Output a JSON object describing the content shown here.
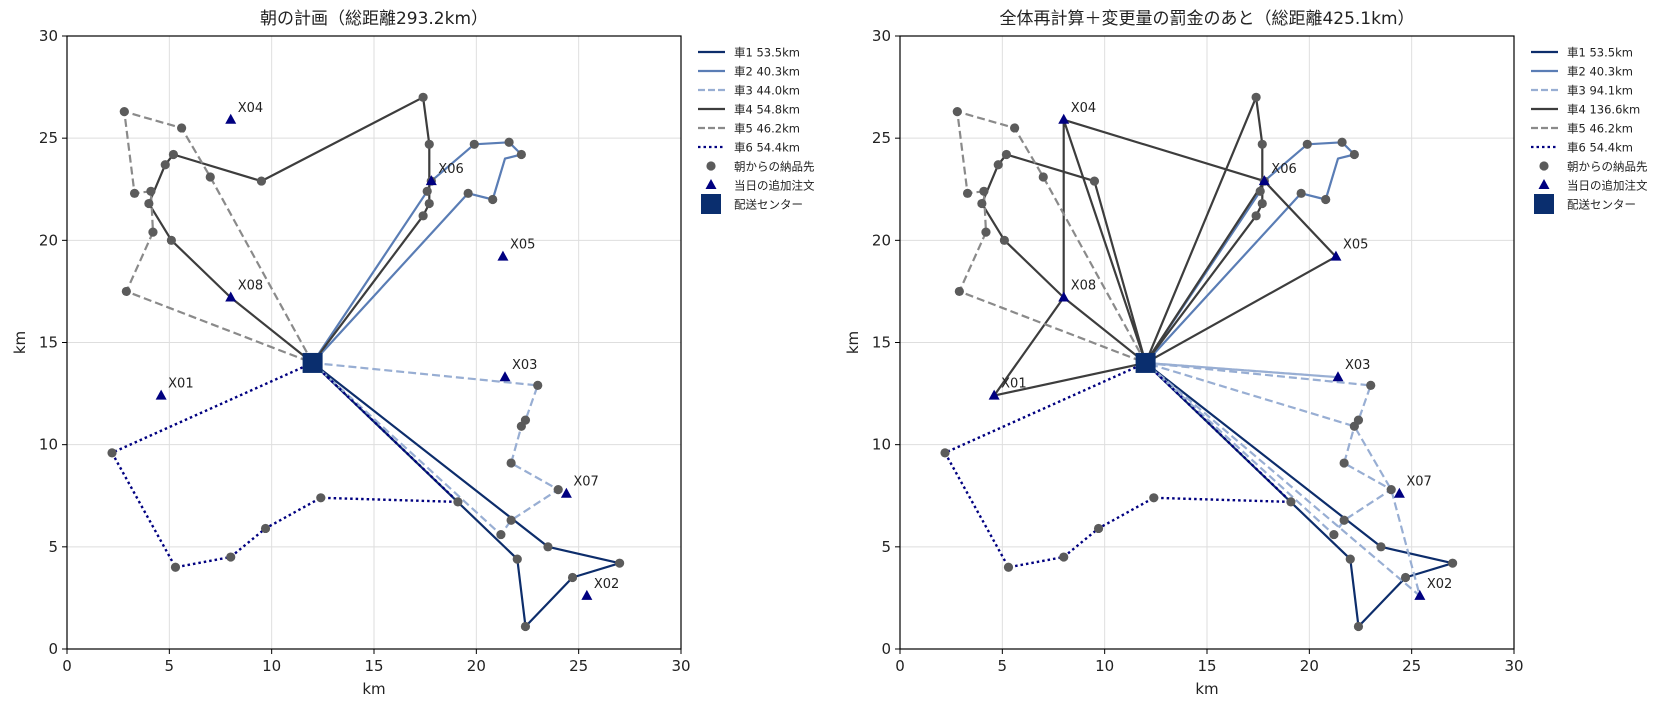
{
  "colors": {
    "route_1": "#0d2d6b",
    "route_2": "#5a7db5",
    "route_3": "#98aed3",
    "route_4": "#3d3d3d",
    "route_5": "#8a8a8a",
    "route_6": "#000080",
    "customer": "#5b5b5b",
    "extra_order": "#000080",
    "depot": "#0a2e6e",
    "grid": "#dedede"
  },
  "legend_items": [
    {
      "label": "車1 53.5km",
      "swatch": "route_1"
    },
    {
      "label": "車2 40.3km",
      "swatch": "route_2"
    },
    {
      "label": "車3 44.0km",
      "swatch": "route_3"
    },
    {
      "label": "車4 54.8km",
      "swatch": "route_4"
    },
    {
      "label": "車5 46.2km",
      "swatch": "route_5"
    },
    {
      "label": "車6 54.4km",
      "swatch": "route_6"
    },
    {
      "label": "朝からの納品先",
      "swatch": "customer"
    },
    {
      "label": "当日の追加注文",
      "swatch": "extra_order"
    },
    {
      "label": "配送センター",
      "swatch": "depot"
    }
  ],
  "chart_data": [
    {
      "type": "scatter",
      "title": "朝の計画（総距離293.2km）",
      "xlabel": "km",
      "ylabel": "km",
      "xlim": [
        0,
        30
      ],
      "ylim": [
        0,
        30
      ],
      "xticks": [
        0,
        5,
        10,
        15,
        20,
        25,
        30
      ],
      "yticks": [
        0,
        5,
        10,
        15,
        20,
        25,
        30
      ],
      "grid": true,
      "legend_position": "outside-right",
      "depot": {
        "name": "配送センター",
        "x": 12,
        "y": 14
      },
      "series": [
        {
          "name": "車1 53.5km",
          "style": "solid",
          "points": [
            [
              12,
              14
            ],
            [
              22.0,
              4.4
            ],
            [
              22.4,
              1.1
            ],
            [
              24.7,
              3.5
            ],
            [
              27.0,
              4.2
            ],
            [
              23.5,
              5.0
            ],
            [
              12,
              14
            ]
          ]
        },
        {
          "name": "車2 40.3km",
          "style": "solid",
          "points": [
            [
              12,
              14
            ],
            [
              17.6,
              22.4
            ],
            [
              17.8,
              22.9
            ],
            [
              19.9,
              24.7
            ],
            [
              21.6,
              24.8
            ],
            [
              22.2,
              24.2
            ],
            [
              21.4,
              24.0
            ],
            [
              20.8,
              22.0
            ],
            [
              19.6,
              22.3
            ],
            [
              12,
              14
            ]
          ]
        },
        {
          "name": "車3 44.0km",
          "style": "dashed",
          "points": [
            [
              12,
              14
            ],
            [
              23.0,
              12.9
            ],
            [
              22.4,
              11.2
            ],
            [
              22.2,
              10.9
            ],
            [
              21.7,
              9.1
            ],
            [
              24.0,
              7.8
            ],
            [
              21.7,
              6.3
            ],
            [
              21.2,
              5.6
            ],
            [
              12,
              14
            ]
          ]
        },
        {
          "name": "車4 54.8km",
          "style": "solid",
          "points": [
            [
              12,
              14
            ],
            [
              8.0,
              17.2
            ],
            [
              5.1,
              20.0
            ],
            [
              4.0,
              21.8
            ],
            [
              4.8,
              23.7
            ],
            [
              5.2,
              24.2
            ],
            [
              9.5,
              22.9
            ],
            [
              17.4,
              27.0
            ],
            [
              17.7,
              24.7
            ],
            [
              17.7,
              21.8
            ],
            [
              17.4,
              21.2
            ],
            [
              12,
              14
            ]
          ]
        },
        {
          "name": "車5 46.2km",
          "style": "dashed",
          "points": [
            [
              12,
              14
            ],
            [
              7.0,
              23.1
            ],
            [
              5.6,
              25.5
            ],
            [
              2.8,
              26.3
            ],
            [
              3.3,
              22.3
            ],
            [
              4.1,
              22.4
            ],
            [
              4.2,
              20.4
            ],
            [
              2.9,
              17.5
            ],
            [
              12,
              14
            ]
          ]
        },
        {
          "name": "車6 54.4km",
          "style": "dotted",
          "points": [
            [
              12,
              14
            ],
            [
              2.2,
              9.6
            ],
            [
              5.3,
              4.0
            ],
            [
              8.0,
              4.5
            ],
            [
              9.7,
              5.9
            ],
            [
              12.4,
              7.4
            ],
            [
              19.1,
              7.2
            ],
            [
              12,
              14
            ]
          ]
        }
      ],
      "morning_customers": [
        [
          22.0,
          4.4
        ],
        [
          22.4,
          1.1
        ],
        [
          24.7,
          3.5
        ],
        [
          27.0,
          4.2
        ],
        [
          23.5,
          5.0
        ],
        [
          17.6,
          22.4
        ],
        [
          17.8,
          22.9
        ],
        [
          19.9,
          24.7
        ],
        [
          21.6,
          24.8
        ],
        [
          22.2,
          24.2
        ],
        [
          20.8,
          22.0
        ],
        [
          19.6,
          22.3
        ],
        [
          23.0,
          12.9
        ],
        [
          22.4,
          11.2
        ],
        [
          22.2,
          10.9
        ],
        [
          21.7,
          9.1
        ],
        [
          24.0,
          7.8
        ],
        [
          21.7,
          6.3
        ],
        [
          21.2,
          5.6
        ],
        [
          5.1,
          20.0
        ],
        [
          4.0,
          21.8
        ],
        [
          4.8,
          23.7
        ],
        [
          5.2,
          24.2
        ],
        [
          9.5,
          22.9
        ],
        [
          17.4,
          27.0
        ],
        [
          17.7,
          24.7
        ],
        [
          17.7,
          21.8
        ],
        [
          17.4,
          21.2
        ],
        [
          7.0,
          23.1
        ],
        [
          5.6,
          25.5
        ],
        [
          2.8,
          26.3
        ],
        [
          3.3,
          22.3
        ],
        [
          4.1,
          22.4
        ],
        [
          4.2,
          20.4
        ],
        [
          2.9,
          17.5
        ],
        [
          2.2,
          9.6
        ],
        [
          5.3,
          4.0
        ],
        [
          8.0,
          4.5
        ],
        [
          9.7,
          5.9
        ],
        [
          12.4,
          7.4
        ],
        [
          19.1,
          7.2
        ]
      ],
      "extra_orders": [
        {
          "label": "X01",
          "x": 4.6,
          "y": 12.4
        },
        {
          "label": "X02",
          "x": 25.4,
          "y": 2.6
        },
        {
          "label": "X03",
          "x": 21.4,
          "y": 13.3
        },
        {
          "label": "X04",
          "x": 8.0,
          "y": 25.9
        },
        {
          "label": "X05",
          "x": 21.3,
          "y": 19.2
        },
        {
          "label": "X06",
          "x": 17.8,
          "y": 22.9
        },
        {
          "label": "X07",
          "x": 24.4,
          "y": 7.6
        },
        {
          "label": "X08",
          "x": 8.0,
          "y": 17.2
        }
      ]
    },
    {
      "type": "scatter",
      "title": "全体再計算＋変更量の罰金のあと（総距離425.1km）",
      "xlabel": "km",
      "ylabel": "km",
      "xlim": [
        0,
        30
      ],
      "ylim": [
        0,
        30
      ],
      "xticks": [
        0,
        5,
        10,
        15,
        20,
        25,
        30
      ],
      "yticks": [
        0,
        5,
        10,
        15,
        20,
        25,
        30
      ],
      "grid": true,
      "legend_position": "outside-right",
      "legend_override": [
        "車1 53.5km",
        "車2 40.3km",
        "車3 94.1km",
        "車4 136.6km",
        "車5 46.2km",
        "車6 54.4km"
      ],
      "depot": {
        "name": "配送センター",
        "x": 12,
        "y": 14
      },
      "series": [
        {
          "name": "車1 53.5km",
          "style": "solid",
          "points": [
            [
              12,
              14
            ],
            [
              22.0,
              4.4
            ],
            [
              22.4,
              1.1
            ],
            [
              24.7,
              3.5
            ],
            [
              27.0,
              4.2
            ],
            [
              23.5,
              5.0
            ],
            [
              12,
              14
            ]
          ]
        },
        {
          "name": "車2 40.3km",
          "style": "solid",
          "points": [
            [
              12,
              14
            ],
            [
              17.6,
              22.4
            ],
            [
              17.8,
              22.9
            ],
            [
              19.9,
              24.7
            ],
            [
              21.6,
              24.8
            ],
            [
              22.2,
              24.2
            ],
            [
              21.4,
              24.0
            ],
            [
              20.8,
              22.0
            ],
            [
              19.6,
              22.3
            ],
            [
              12,
              14
            ]
          ]
        },
        {
          "name": "車3 94.1km",
          "style": "dashed",
          "points": [
            [
              12,
              14
            ],
            [
              23.0,
              12.9
            ],
            [
              22.4,
              11.2
            ],
            [
              22.2,
              10.9
            ],
            [
              21.7,
              9.1
            ],
            [
              24.0,
              7.8
            ],
            [
              21.7,
              6.3
            ],
            [
              21.2,
              5.6
            ],
            [
              12,
              14
            ],
            [
              25.4,
              2.6
            ],
            [
              24.0,
              7.8
            ],
            [
              22.2,
              10.9
            ],
            [
              12,
              14
            ],
            [
              21.4,
              13.3
            ],
            [
              12,
              14
            ]
          ]
        },
        {
          "name": "車4 136.6km",
          "style": "solid",
          "points": [
            [
              12,
              14
            ],
            [
              8.0,
              17.2
            ],
            [
              5.1,
              20.0
            ],
            [
              4.0,
              21.8
            ],
            [
              4.8,
              23.7
            ],
            [
              5.2,
              24.2
            ],
            [
              9.5,
              22.9
            ],
            [
              12,
              14
            ],
            [
              17.4,
              27.0
            ],
            [
              17.7,
              24.7
            ],
            [
              17.7,
              21.8
            ],
            [
              17.4,
              21.2
            ],
            [
              12,
              14
            ],
            [
              8.0,
              25.9
            ],
            [
              8.0,
              17.2
            ],
            [
              4.6,
              12.4
            ],
            [
              12,
              14
            ],
            [
              17.8,
              22.9
            ],
            [
              21.3,
              19.2
            ],
            [
              12,
              14
            ],
            [
              8.0,
              25.9
            ],
            [
              17.8,
              22.9
            ]
          ]
        },
        {
          "name": "車5 46.2km",
          "style": "dashed",
          "points": [
            [
              12,
              14
            ],
            [
              7.0,
              23.1
            ],
            [
              5.6,
              25.5
            ],
            [
              2.8,
              26.3
            ],
            [
              3.3,
              22.3
            ],
            [
              4.1,
              22.4
            ],
            [
              4.2,
              20.4
            ],
            [
              2.9,
              17.5
            ],
            [
              12,
              14
            ]
          ]
        },
        {
          "name": "車6 54.4km",
          "style": "dotted",
          "points": [
            [
              12,
              14
            ],
            [
              2.2,
              9.6
            ],
            [
              5.3,
              4.0
            ],
            [
              8.0,
              4.5
            ],
            [
              9.7,
              5.9
            ],
            [
              12.4,
              7.4
            ],
            [
              19.1,
              7.2
            ],
            [
              12,
              14
            ]
          ]
        }
      ],
      "morning_customers": [
        [
          22.0,
          4.4
        ],
        [
          22.4,
          1.1
        ],
        [
          24.7,
          3.5
        ],
        [
          27.0,
          4.2
        ],
        [
          23.5,
          5.0
        ],
        [
          17.6,
          22.4
        ],
        [
          17.8,
          22.9
        ],
        [
          19.9,
          24.7
        ],
        [
          21.6,
          24.8
        ],
        [
          22.2,
          24.2
        ],
        [
          20.8,
          22.0
        ],
        [
          19.6,
          22.3
        ],
        [
          23.0,
          12.9
        ],
        [
          22.4,
          11.2
        ],
        [
          22.2,
          10.9
        ],
        [
          21.7,
          9.1
        ],
        [
          24.0,
          7.8
        ],
        [
          21.7,
          6.3
        ],
        [
          21.2,
          5.6
        ],
        [
          5.1,
          20.0
        ],
        [
          4.0,
          21.8
        ],
        [
          4.8,
          23.7
        ],
        [
          5.2,
          24.2
        ],
        [
          9.5,
          22.9
        ],
        [
          17.4,
          27.0
        ],
        [
          17.7,
          24.7
        ],
        [
          17.7,
          21.8
        ],
        [
          17.4,
          21.2
        ],
        [
          7.0,
          23.1
        ],
        [
          5.6,
          25.5
        ],
        [
          2.8,
          26.3
        ],
        [
          3.3,
          22.3
        ],
        [
          4.1,
          22.4
        ],
        [
          4.2,
          20.4
        ],
        [
          2.9,
          17.5
        ],
        [
          2.2,
          9.6
        ],
        [
          5.3,
          4.0
        ],
        [
          8.0,
          4.5
        ],
        [
          9.7,
          5.9
        ],
        [
          12.4,
          7.4
        ],
        [
          19.1,
          7.2
        ]
      ],
      "extra_orders": [
        {
          "label": "X01",
          "x": 4.6,
          "y": 12.4
        },
        {
          "label": "X02",
          "x": 25.4,
          "y": 2.6
        },
        {
          "label": "X03",
          "x": 21.4,
          "y": 13.3
        },
        {
          "label": "X04",
          "x": 8.0,
          "y": 25.9
        },
        {
          "label": "X05",
          "x": 21.3,
          "y": 19.2
        },
        {
          "label": "X06",
          "x": 17.8,
          "y": 22.9
        },
        {
          "label": "X07",
          "x": 24.4,
          "y": 7.6
        },
        {
          "label": "X08",
          "x": 8.0,
          "y": 17.2
        }
      ]
    }
  ]
}
